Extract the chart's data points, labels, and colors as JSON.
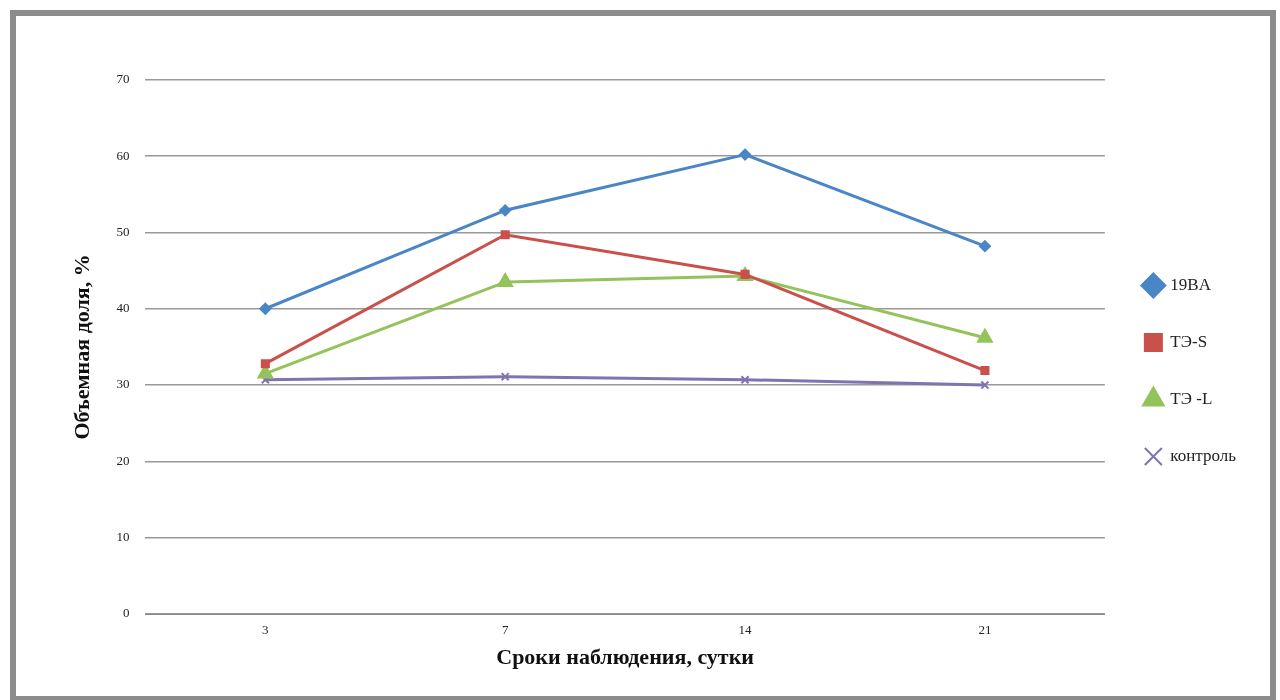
{
  "chart_data": {
    "type": "line",
    "xlabel": "Сроки наблюдения, сутки",
    "ylabel": "Объемная доля, %",
    "categories": [
      "3",
      "7",
      "14",
      "21"
    ],
    "series": [
      {
        "name": "19BA",
        "color": "#4a86c5",
        "marker": "diamond",
        "values": [
          40,
          52.9,
          60.2,
          48.2
        ]
      },
      {
        "name": "ТЭ-S",
        "color": "#c9504b",
        "marker": "square",
        "values": [
          32.8,
          49.7,
          44.5,
          31.9
        ]
      },
      {
        "name": "ТЭ -L",
        "color": "#93c35a",
        "marker": "triangle",
        "values": [
          31.5,
          43.5,
          44.3,
          36.2
        ]
      },
      {
        "name": "контроль",
        "color": "#8073b0",
        "marker": "cross",
        "values": [
          30.7,
          31.1,
          30.7,
          30
        ]
      }
    ],
    "ylim": [
      0,
      70
    ],
    "yticks": [
      0,
      10,
      20,
      30,
      40,
      50,
      60,
      70
    ],
    "grid": "y",
    "legend": "right",
    "line_style": "solid"
  }
}
